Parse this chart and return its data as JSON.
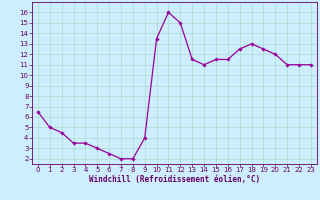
{
  "x": [
    0,
    1,
    2,
    3,
    4,
    5,
    6,
    7,
    8,
    9,
    10,
    11,
    12,
    13,
    14,
    15,
    16,
    17,
    18,
    19,
    20,
    21,
    22,
    23
  ],
  "y": [
    6.5,
    5.0,
    4.5,
    3.5,
    3.5,
    3.0,
    2.5,
    2.0,
    2.0,
    4.0,
    13.5,
    16.0,
    15.0,
    11.5,
    11.0,
    11.5,
    11.5,
    12.5,
    13.0,
    12.5,
    12.0,
    11.0,
    11.0,
    11.0
  ],
  "line_color": "#990099",
  "marker": "D",
  "marker_size": 1.8,
  "bg_color": "#cceeff",
  "grid_color": "#aaddcc",
  "xlabel": "Windchill (Refroidissement éolien,°C)",
  "xlabel_fontsize": 5.5,
  "tick_fontsize": 5.0,
  "ylim": [
    1.5,
    17
  ],
  "xlim": [
    -0.5,
    23.5
  ],
  "yticks": [
    2,
    3,
    4,
    5,
    6,
    7,
    8,
    9,
    10,
    11,
    12,
    13,
    14,
    15,
    16
  ],
  "xticks": [
    0,
    1,
    2,
    3,
    4,
    5,
    6,
    7,
    8,
    9,
    10,
    11,
    12,
    13,
    14,
    15,
    16,
    17,
    18,
    19,
    20,
    21,
    22,
    23
  ],
  "line_width": 0.9,
  "axes_color": "#660066",
  "spine_color": "#660066"
}
